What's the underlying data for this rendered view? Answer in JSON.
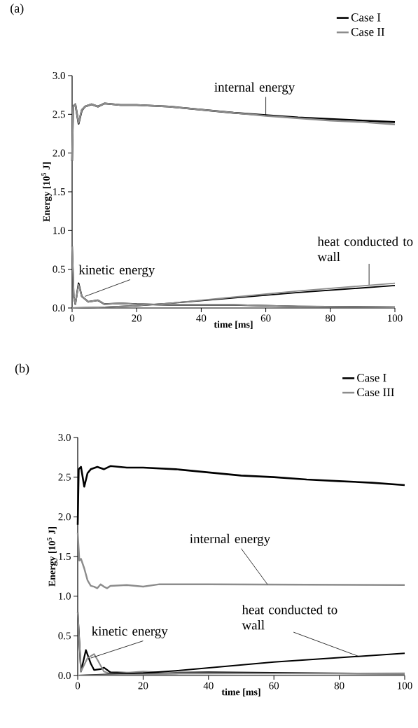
{
  "chart_data": [
    {
      "type": "line",
      "title": "(a)",
      "xlabel": "time [ms]",
      "ylabel": "**Energy [10$^{5}$ J]**",
      "xlim": [
        0,
        100
      ],
      "ylim": [
        0,
        3.0
      ],
      "xticks": [
        0,
        20,
        40,
        60,
        80,
        100
      ],
      "yticks": [
        {
          "value": 0,
          "label": "0.0"
        },
        0.5,
        {
          "value": 1,
          "label": "1.0"
        },
        1.5,
        {
          "value": 2,
          "label": "2.0"
        },
        2.5,
        {
          "value": 3,
          "label": "3.0"
        }
      ],
      "legend": "top right",
      "annotations": [
        {
          "text": "internal energy",
          "x": 60,
          "y": 2.49
        },
        {
          "text": "kinetic energy",
          "x": 4,
          "y": 0.15
        },
        {
          "text": "heat conducted to wall",
          "x": 92,
          "y": 0.3
        }
      ],
      "series": [
        {
          "name": "Case I",
          "color": "#000000",
          "x": [
            0,
            0.3,
            1,
            2,
            3,
            4,
            6,
            8,
            10,
            15,
            20,
            30,
            40,
            50,
            60,
            70,
            80,
            90,
            100
          ],
          "values": [
            1.9,
            2.6,
            2.63,
            2.38,
            2.55,
            2.6,
            2.63,
            2.6,
            2.64,
            2.62,
            2.62,
            2.6,
            2.56,
            2.52,
            2.49,
            2.46,
            2.44,
            2.42,
            2.4
          ]
        },
        {
          "name": "Case II",
          "color": "#8c8c8c",
          "x": [
            0,
            0.3,
            1,
            2,
            3,
            4,
            6,
            8,
            10,
            15,
            20,
            30,
            40,
            50,
            60,
            70,
            80,
            90,
            100
          ],
          "values": [
            1.9,
            2.6,
            2.63,
            2.39,
            2.56,
            2.6,
            2.63,
            2.6,
            2.64,
            2.62,
            2.62,
            2.6,
            2.56,
            2.52,
            2.48,
            2.45,
            2.42,
            2.4,
            2.37
          ]
        },
        {
          "color": "#000000",
          "x": [
            0,
            0.5,
            1,
            2,
            3,
            5,
            8,
            10,
            15,
            20,
            30,
            50,
            70,
            100
          ],
          "values": [
            0.8,
            0.15,
            0.05,
            0.32,
            0.15,
            0.08,
            0.1,
            0.05,
            0.06,
            0.05,
            0.04,
            0.04,
            0.02,
            0.01
          ]
        },
        {
          "color": "#8c8c8c",
          "x": [
            0,
            0.5,
            1,
            2,
            3,
            5,
            8,
            10,
            15,
            20,
            30,
            50,
            70,
            100
          ],
          "values": [
            0.8,
            0.15,
            0.05,
            0.3,
            0.15,
            0.08,
            0.1,
            0.05,
            0.06,
            0.05,
            0.04,
            0.04,
            0.02,
            0.01
          ]
        },
        {
          "color": "#000000",
          "x": [
            0,
            10,
            20,
            30,
            50,
            70,
            100
          ],
          "values": [
            0,
            0.01,
            0.03,
            0.06,
            0.13,
            0.2,
            0.29
          ]
        },
        {
          "color": "#8c8c8c",
          "x": [
            0,
            10,
            20,
            30,
            50,
            70,
            100
          ],
          "values": [
            0,
            0.01,
            0.03,
            0.06,
            0.14,
            0.22,
            0.32
          ]
        }
      ]
    },
    {
      "type": "line",
      "title": "(b)",
      "xlabel": "time [ms]",
      "ylabel": "**Energy [10$^{5}$ J]**",
      "xlim": [
        0,
        100
      ],
      "ylim": [
        0,
        3.0
      ],
      "xticks": [
        0,
        20,
        40,
        60,
        80,
        100
      ],
      "yticks": [
        {
          "value": 0,
          "label": "0.0"
        },
        0.5,
        {
          "value": 1,
          "label": "1.0"
        },
        1.5,
        {
          "value": 2,
          "label": "2.0"
        },
        2.5,
        {
          "value": 3,
          "label": "3.0"
        }
      ],
      "legend": "top right",
      "annotations": [
        {
          "text": "internal energy",
          "x": 58,
          "y": 1.15
        },
        {
          "text": "kinetic energy",
          "x": 4,
          "y": 0.22
        },
        {
          "text": "heat conducted to wall",
          "x": 86,
          "y": 0.24
        }
      ],
      "series": [
        {
          "name": "Case I",
          "color": "#000000",
          "x": [
            0,
            0.3,
            1,
            2,
            3,
            4,
            6,
            8,
            10,
            15,
            20,
            30,
            40,
            50,
            60,
            70,
            80,
            90,
            100
          ],
          "values": [
            1.9,
            2.6,
            2.63,
            2.38,
            2.55,
            2.6,
            2.63,
            2.6,
            2.64,
            2.62,
            2.62,
            2.6,
            2.56,
            2.52,
            2.5,
            2.47,
            2.45,
            2.43,
            2.4
          ]
        },
        {
          "name": "Case III",
          "color": "#8c8c8c",
          "x": [
            0,
            0.5,
            1,
            2,
            3,
            4,
            5,
            6,
            7,
            8,
            9,
            10,
            15,
            20,
            25,
            40,
            100
          ],
          "values": [
            1.8,
            1.45,
            1.47,
            1.35,
            1.2,
            1.13,
            1.12,
            1.1,
            1.15,
            1.12,
            1.1,
            1.13,
            1.14,
            1.12,
            1.15,
            1.15,
            1.14
          ]
        },
        {
          "color": "#000000",
          "x": [
            0,
            1,
            2.5,
            4,
            5,
            7,
            8,
            10,
            20,
            40,
            70,
            100
          ],
          "values": [
            0.8,
            0.05,
            0.32,
            0.15,
            0.07,
            0.08,
            0.1,
            0.04,
            0.03,
            0.04,
            0.03,
            0.02
          ]
        },
        {
          "color": "#8c8c8c",
          "x": [
            0,
            1,
            3,
            5,
            6,
            8,
            10,
            20,
            30,
            100
          ],
          "values": [
            0.8,
            0.05,
            0.22,
            0.27,
            0.2,
            0.05,
            0.02,
            0.05,
            0.03,
            0.02
          ]
        },
        {
          "color": "#000000",
          "x": [
            0,
            20,
            30,
            60,
            100
          ],
          "values": [
            0,
            0.03,
            0.06,
            0.17,
            0.28
          ]
        },
        {
          "color": "#8c8c8c",
          "x": [
            0,
            30,
            100
          ],
          "values": [
            0,
            0.02,
            0.03
          ]
        }
      ]
    }
  ]
}
